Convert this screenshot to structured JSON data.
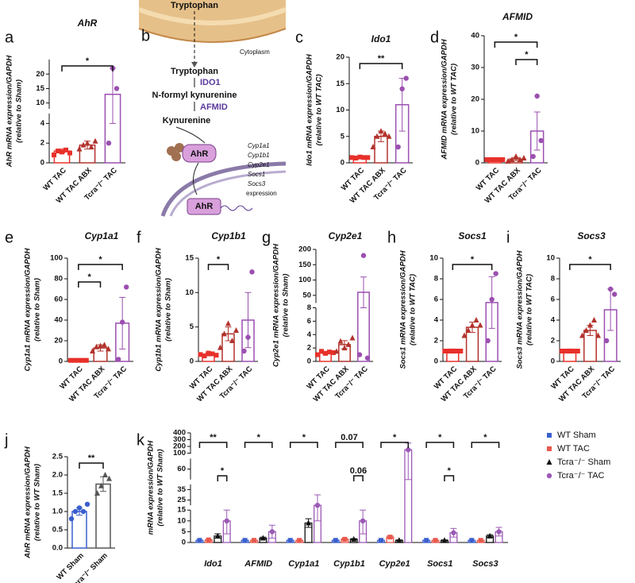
{
  "diagram": {
    "panel": "b",
    "source": "Tryptophan",
    "compartment": "Cytoplasm",
    "metabolites": [
      "Tryptophan",
      "N-formyl kynurenine",
      "Kynurenine"
    ],
    "enzymes": [
      "IDO1",
      "AFMID"
    ],
    "receptor": "AhR",
    "nuclear_receptor": "AhR",
    "targets": [
      "Cyp1a1",
      "Cyp1b1",
      "Cyp2e1",
      "Socs1",
      "Socs3"
    ],
    "target_note": "expression"
  },
  "chart_data": [
    {
      "type": "bar",
      "panel": "a",
      "title": "AhR",
      "ylabel": [
        "AhR mRNA expression/GAPDH",
        "(relative to Sham)"
      ],
      "categories": [
        "WT TAC",
        "WT TAC ABX",
        "Tcra⁻/⁻ TAC"
      ],
      "colors": [
        "#e8302a",
        "#b2332d",
        "#9b4fb0"
      ],
      "markers": [
        "square",
        "triangle",
        "circle"
      ],
      "values": [
        1.2,
        1.8,
        13
      ],
      "errors": [
        0.2,
        0.4,
        9
      ],
      "points": [
        [
          0.8,
          1.2,
          1.1,
          1.3,
          1.0
        ],
        [
          1.4,
          1.8,
          2.0,
          1.6,
          2.2
        ],
        [
          2,
          22,
          15
        ]
      ],
      "y_segments": [
        [
          0,
          5
        ],
        [
          8,
          25
        ]
      ],
      "yticks": [
        0,
        2,
        4,
        10,
        15,
        20
      ],
      "annotations": [
        {
          "label": "*",
          "between": [
            0,
            2
          ]
        }
      ]
    },
    {
      "type": "bar",
      "panel": "c",
      "title": "Ido1",
      "ylabel": [
        "Ido1 mRNA expression/GAPDH",
        "(relative to WT TAC)"
      ],
      "categories": [
        "WT TAC",
        "WT TAC ABX",
        "Tcra⁻/⁻ TAC"
      ],
      "colors": [
        "#e8302a",
        "#b2332d",
        "#9b4fb0"
      ],
      "markers": [
        "square",
        "triangle",
        "circle"
      ],
      "values": [
        1,
        5,
        11
      ],
      "errors": [
        0.2,
        1,
        5
      ],
      "points": [
        [
          1,
          0.9,
          1.1,
          1,
          1
        ],
        [
          3,
          5,
          6,
          5.5,
          5
        ],
        [
          3,
          14,
          16
        ]
      ],
      "ylim": [
        0,
        20
      ],
      "yticks": [
        0,
        5,
        10,
        15,
        20
      ],
      "annotations": [
        {
          "label": "**",
          "between": [
            0,
            2
          ]
        }
      ]
    },
    {
      "type": "bar",
      "panel": "d",
      "title": "AFMID",
      "ylabel": [
        "AFMID mRNA expression/GAPDH",
        "(relative to WT TAC)"
      ],
      "categories": [
        "WT TAC",
        "WT TAC ABX",
        "Tcra⁻/⁻ TAC"
      ],
      "colors": [
        "#e8302a",
        "#b2332d",
        "#9b4fb0"
      ],
      "markers": [
        "square",
        "triangle",
        "circle"
      ],
      "values": [
        1,
        1.2,
        10
      ],
      "errors": [
        0.2,
        0.5,
        6
      ],
      "points": [
        [
          1,
          1,
          1,
          1,
          1
        ],
        [
          0.5,
          1,
          2,
          1,
          1.5
        ],
        [
          2,
          21,
          7
        ]
      ],
      "ylim": [
        0,
        40
      ],
      "yticks": [
        0,
        10,
        20,
        30,
        40
      ],
      "annotations": [
        {
          "label": "*",
          "between": [
            1,
            2
          ]
        },
        {
          "label": "*",
          "between": [
            0,
            2
          ]
        }
      ]
    },
    {
      "type": "bar",
      "panel": "e",
      "title": "Cyp1a1",
      "ylabel": [
        "Cyp1a1 mRNA expression/GAPDH",
        "(relative to Sham)"
      ],
      "categories": [
        "WT TAC",
        "WT TAC ABX",
        "Tcra⁻/⁻ TAC"
      ],
      "colors": [
        "#e8302a",
        "#b2332d",
        "#9b4fb0"
      ],
      "markers": [
        "square",
        "triangle",
        "circle"
      ],
      "values": [
        1,
        13,
        37
      ],
      "errors": [
        0.3,
        3,
        25
      ],
      "points": [
        [
          1,
          1,
          1,
          1,
          1
        ],
        [
          10,
          14,
          15,
          16,
          12
        ],
        [
          2,
          38,
          72
        ]
      ],
      "ylim": [
        0,
        100
      ],
      "yticks": [
        0,
        20,
        40,
        60,
        80,
        100
      ],
      "annotations": [
        {
          "label": "*",
          "between": [
            0,
            1
          ]
        },
        {
          "label": "*",
          "between": [
            0,
            2
          ]
        }
      ]
    },
    {
      "type": "bar",
      "panel": "f",
      "title": "Cyp1b1",
      "ylabel": [
        "Cyp1b1 mRNA expression/GAPDH",
        "(relative to Sham)"
      ],
      "categories": [
        "WT TAC",
        "WT TAC ABX",
        "Tcra⁻/⁻ TAC"
      ],
      "colors": [
        "#e8302a",
        "#b2332d",
        "#9b4fb0"
      ],
      "markers": [
        "square",
        "triangle",
        "circle"
      ],
      "values": [
        1,
        4,
        6
      ],
      "errors": [
        0.2,
        1,
        4
      ],
      "points": [
        [
          1,
          0.8,
          1.2,
          1.1,
          0.9
        ],
        [
          2,
          4,
          5.5,
          3,
          4.5
        ],
        [
          1.5,
          3.5,
          13
        ]
      ],
      "ylim": [
        0,
        15
      ],
      "yticks": [
        0,
        5,
        10,
        15
      ],
      "annotations": [
        {
          "label": "*",
          "between": [
            0,
            1
          ]
        }
      ]
    },
    {
      "type": "bar",
      "panel": "g",
      "title": "Cyp2e1",
      "ylabel": [
        "Cyp2e1 mRNA expression/GAPDH",
        "(relative to Sham)"
      ],
      "categories": [
        "WT TAC",
        "WT TAC ABX",
        "Tcra⁻/⁻ TAC"
      ],
      "colors": [
        "#e8302a",
        "#b2332d",
        "#9b4fb0"
      ],
      "markers": [
        "square",
        "triangle",
        "circle"
      ],
      "values": [
        1.3,
        2.5,
        60
      ],
      "errors": [
        0.2,
        0.6,
        50
      ],
      "points": [
        [
          1,
          1.5,
          1.2,
          1.4,
          1.3
        ],
        [
          1.5,
          3,
          2,
          2.5,
          3.5
        ],
        [
          1,
          180,
          0.5
        ]
      ],
      "y_segments": [
        [
          0,
          8
        ],
        [
          25,
          200
        ]
      ],
      "yticks": [
        0,
        2,
        4,
        6,
        8,
        50,
        100,
        150,
        200
      ],
      "annotations": []
    },
    {
      "type": "bar",
      "panel": "h",
      "title": "Socs1",
      "ylabel": [
        "Socs1 mRNA expression/GAPDH",
        "(relative to WT TAC)"
      ],
      "categories": [
        "WT TAC",
        "WT TAC ABX",
        "Tcra⁻/⁻ TAC"
      ],
      "colors": [
        "#e8302a",
        "#b2332d",
        "#9b4fb0"
      ],
      "markers": [
        "square",
        "triangle",
        "circle"
      ],
      "values": [
        1,
        3.3,
        5.7
      ],
      "errors": [
        0.2,
        0.5,
        2.5
      ],
      "points": [
        [
          1,
          1,
          1,
          1,
          1
        ],
        [
          2.5,
          3,
          3.5,
          4,
          3.5
        ],
        [
          2,
          6,
          8.5
        ]
      ],
      "ylim": [
        0,
        10
      ],
      "yticks": [
        0,
        2,
        4,
        6,
        8,
        10
      ],
      "annotations": [
        {
          "label": "*",
          "between": [
            0,
            2
          ]
        }
      ]
    },
    {
      "type": "bar",
      "panel": "i",
      "title": "Socs3",
      "ylabel": [
        "Socs3 mRNA expression/GAPDH",
        "(relative to WT TAC)"
      ],
      "categories": [
        "WT TAC",
        "WT TAC ABX",
        "Tcra⁻/⁻ TAC"
      ],
      "colors": [
        "#e8302a",
        "#b2332d",
        "#9b4fb0"
      ],
      "markers": [
        "square",
        "triangle",
        "circle"
      ],
      "values": [
        1,
        3,
        5
      ],
      "errors": [
        0.2,
        0.5,
        2
      ],
      "points": [
        [
          1,
          1,
          1,
          1,
          1
        ],
        [
          2.5,
          3,
          3.5,
          4,
          2.5
        ],
        [
          2,
          7,
          6.5
        ]
      ],
      "ylim": [
        0,
        10
      ],
      "yticks": [
        0,
        2,
        4,
        6,
        8,
        10
      ],
      "annotations": [
        {
          "label": "*",
          "between": [
            0,
            2
          ]
        }
      ]
    },
    {
      "type": "bar",
      "panel": "j",
      "ylabel": [
        "AhR mRNA expression/GAPDH",
        "(relative to WT Sham)"
      ],
      "categories": [
        "WT Sham",
        "Tcra⁻/⁻ Sham"
      ],
      "colors": [
        "#3a5fcd",
        "#555555"
      ],
      "markers": [
        "circle",
        "triangle"
      ],
      "values": [
        1,
        1.75
      ],
      "errors": [
        0.1,
        0.2
      ],
      "points": [
        [
          0.8,
          1,
          1.1,
          1,
          1.2
        ],
        [
          1.5,
          1.7,
          2,
          1.9
        ]
      ],
      "ylim": [
        0,
        2.5
      ],
      "yticks": [
        {
          "value": 0,
          "label": "0.0"
        },
        0.5,
        {
          "value": 1,
          "label": "1.0"
        },
        1.5,
        {
          "value": 2,
          "label": "2.0"
        },
        2.5
      ],
      "annotations": [
        {
          "label": "**",
          "between": [
            0,
            1
          ]
        }
      ]
    },
    {
      "type": "grouped_bar",
      "panel": "k",
      "ylabel": [
        "mRNA expression/GAPDH",
        "(relative to WT Sham)"
      ],
      "categories": [
        "Ido1",
        "AFMID",
        "Cyp1a1",
        "Cyp1b1",
        "Cyp2e1",
        "Socs1",
        "Socs3"
      ],
      "series": [
        {
          "name": "WT Sham",
          "color": "#3a5fcd",
          "marker": "square",
          "values": [
            1,
            1,
            1,
            1,
            1,
            1,
            1
          ],
          "errors": [
            0.1,
            0.1,
            0.1,
            0.1,
            0.1,
            0.1,
            0.1
          ]
        },
        {
          "name": "WT TAC",
          "color": "#e8584c",
          "marker": "square",
          "values": [
            1.2,
            1,
            1,
            1.5,
            2.5,
            1,
            1
          ],
          "errors": [
            0.2,
            0.1,
            0.1,
            0.3,
            0.5,
            0.1,
            0.1
          ]
        },
        {
          "name": "Tcra⁻/⁻ Sham",
          "color": "#111111",
          "marker": "triangle",
          "values": [
            3,
            2,
            9,
            1.5,
            1,
            1,
            3
          ],
          "errors": [
            1,
            0.5,
            2,
            0.3,
            0.2,
            0.2,
            0.6
          ]
        },
        {
          "name": "Tcra⁻/⁻ TAC",
          "color": "#9b59b6",
          "marker": "circle",
          "values": [
            10,
            5,
            20,
            10,
            150,
            4.5,
            5
          ],
          "errors": [
            6,
            3,
            10,
            6,
            100,
            2,
            2
          ]
        }
      ],
      "y_segments": [
        [
          0,
          15
        ],
        [
          20,
          40
        ],
        [
          50,
          70
        ],
        [
          90,
          400
        ]
      ],
      "yticks": [
        0,
        5,
        10,
        15,
        25,
        35,
        60,
        100,
        200,
        300,
        400
      ],
      "annotations": [
        {
          "label": "*",
          "category": 0,
          "between": [
            2,
            3
          ]
        },
        {
          "label": "**",
          "category": 0,
          "between": [
            0,
            3
          ]
        },
        {
          "label": "*",
          "category": 1,
          "between": [
            0,
            3
          ]
        },
        {
          "label": "*",
          "category": 2,
          "between": [
            0,
            3
          ]
        },
        {
          "label": "0.06",
          "category": 3,
          "between": [
            2,
            3
          ]
        },
        {
          "label": "0.07",
          "category": 3,
          "between": [
            0,
            3
          ]
        },
        {
          "label": "*",
          "category": 4,
          "between": [
            0,
            3
          ]
        },
        {
          "label": "*",
          "category": 5,
          "between": [
            2,
            3
          ]
        },
        {
          "label": "*",
          "category": 5,
          "between": [
            0,
            3
          ]
        },
        {
          "label": "*",
          "category": 6,
          "between": [
            0,
            3
          ]
        }
      ]
    }
  ]
}
